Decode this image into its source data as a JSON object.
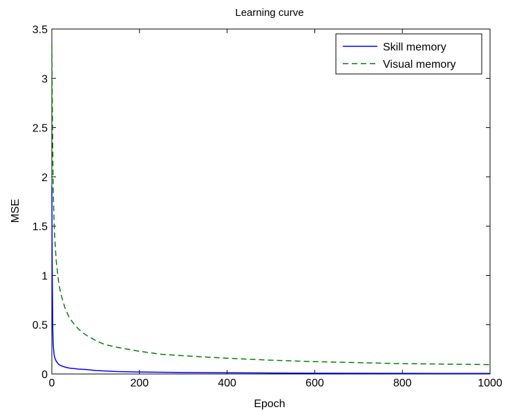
{
  "chart_data": {
    "type": "line",
    "title": "Learning curve",
    "xlabel": "Epoch",
    "ylabel": "MSE",
    "xlim": [
      0,
      1000
    ],
    "ylim": [
      0,
      3.5
    ],
    "xticks": [
      0,
      200,
      400,
      600,
      800,
      1000
    ],
    "xtick_labels": [
      "0",
      "200",
      "400",
      "600",
      "800",
      "1000"
    ],
    "yticks": [
      0,
      0.5,
      1,
      1.5,
      2,
      2.5,
      3,
      3.5
    ],
    "ytick_labels": [
      "0",
      "0.5",
      "1",
      "1.5",
      "2",
      "2.5",
      "3",
      "3.5"
    ],
    "grid": false,
    "legend_position": "top-right",
    "series": [
      {
        "name": "Skill memory",
        "color": "#0000ff",
        "style": "solid",
        "x": [
          0,
          1,
          2,
          3,
          5,
          7,
          10,
          15,
          20,
          30,
          40,
          50,
          60,
          70,
          80,
          100,
          150,
          200,
          300,
          400,
          500,
          600,
          700,
          800,
          900,
          1000
        ],
        "y": [
          1.9,
          1.0,
          0.5,
          0.3,
          0.2,
          0.16,
          0.13,
          0.1,
          0.085,
          0.07,
          0.06,
          0.055,
          0.05,
          0.047,
          0.045,
          0.035,
          0.025,
          0.02,
          0.015,
          0.012,
          0.01,
          0.008,
          0.007,
          0.006,
          0.005,
          0.005
        ]
      },
      {
        "name": "Visual memory",
        "color": "#007f00",
        "style": "dashed",
        "x": [
          0,
          1,
          2,
          3,
          5,
          7,
          10,
          15,
          20,
          30,
          40,
          50,
          60,
          70,
          80,
          100,
          120,
          150,
          200,
          250,
          300,
          400,
          500,
          600,
          700,
          800,
          900,
          1000
        ],
        "y": [
          3.35,
          2.8,
          2.3,
          1.9,
          1.55,
          1.35,
          1.15,
          0.95,
          0.82,
          0.67,
          0.57,
          0.51,
          0.46,
          0.42,
          0.39,
          0.34,
          0.3,
          0.27,
          0.23,
          0.2,
          0.185,
          0.16,
          0.14,
          0.125,
          0.115,
          0.105,
          0.1,
          0.095
        ]
      }
    ]
  }
}
